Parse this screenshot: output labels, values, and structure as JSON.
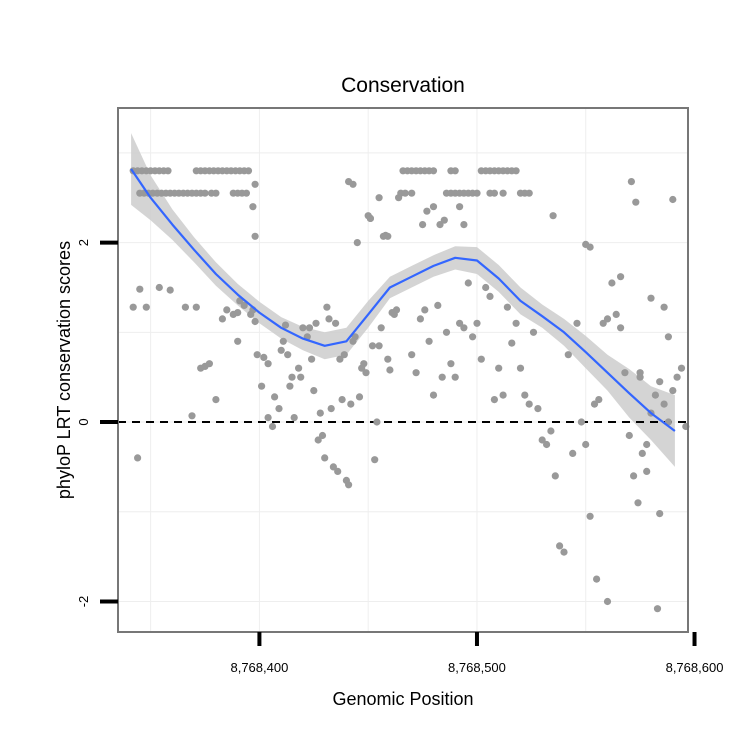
{
  "chart_data": {
    "type": "scatter",
    "title": "Conservation",
    "xlabel": "Genomic Position",
    "ylabel": "phyloP LRT conservation scores",
    "xlim": [
      8768335,
      8768597
    ],
    "ylim": [
      -2.34,
      3.5
    ],
    "xticks": [
      8768400,
      8768500,
      8768600
    ],
    "xtick_labels": [
      "8,768,400",
      "8,768,500",
      "8,768,600"
    ],
    "yticks": [
      -2,
      0,
      2
    ],
    "ytick_labels": [
      "-2",
      "0",
      "2"
    ],
    "grid": true,
    "reference_line": {
      "y": 0,
      "style": "dashed"
    },
    "colors": {
      "points": "#999999",
      "smooth": "#3366ff",
      "band": "#cccccc",
      "frame": "#777777",
      "grid": "#eeeeee"
    },
    "points": [
      [
        8768342,
        2.8
      ],
      [
        8768344,
        2.8
      ],
      [
        8768346,
        2.8
      ],
      [
        8768348,
        2.8
      ],
      [
        8768350,
        2.8
      ],
      [
        8768352,
        2.8
      ],
      [
        8768354,
        2.8
      ],
      [
        8768356,
        2.8
      ],
      [
        8768358,
        2.8
      ],
      [
        8768345,
        2.55
      ],
      [
        8768347,
        2.55
      ],
      [
        8768349,
        2.55
      ],
      [
        8768351,
        2.55
      ],
      [
        8768353,
        2.55
      ],
      [
        8768355,
        2.55
      ],
      [
        8768357,
        2.55
      ],
      [
        8768359,
        2.55
      ],
      [
        8768361,
        2.55
      ],
      [
        8768363,
        2.55
      ],
      [
        8768365,
        2.55
      ],
      [
        8768367,
        2.55
      ],
      [
        8768369,
        2.55
      ],
      [
        8768371,
        2.55
      ],
      [
        8768373,
        2.55
      ],
      [
        8768375,
        2.55
      ],
      [
        8768371,
        2.8
      ],
      [
        8768373,
        2.8
      ],
      [
        8768375,
        2.8
      ],
      [
        8768377,
        2.8
      ],
      [
        8768379,
        2.8
      ],
      [
        8768381,
        2.8
      ],
      [
        8768383,
        2.8
      ],
      [
        8768385,
        2.8
      ],
      [
        8768387,
        2.8
      ],
      [
        8768389,
        2.8
      ],
      [
        8768391,
        2.8
      ],
      [
        8768393,
        2.8
      ],
      [
        8768395,
        2.8
      ],
      [
        8768378,
        2.55
      ],
      [
        8768380,
        2.55
      ],
      [
        8768388,
        2.55
      ],
      [
        8768390,
        2.55
      ],
      [
        8768392,
        2.55
      ],
      [
        8768394,
        2.55
      ],
      [
        8768398,
        2.65
      ],
      [
        8768397,
        2.4
      ],
      [
        8768398,
        2.07
      ],
      [
        8768342,
        1.28
      ],
      [
        8768345,
        1.48
      ],
      [
        8768348,
        1.28
      ],
      [
        8768354,
        1.5
      ],
      [
        8768359,
        1.47
      ],
      [
        8768366,
        1.28
      ],
      [
        8768371,
        1.28
      ],
      [
        8768344,
        -0.4
      ],
      [
        8768373,
        0.6
      ],
      [
        8768375,
        0.62
      ],
      [
        8768377,
        0.65
      ],
      [
        8768380,
        0.25
      ],
      [
        8768383,
        1.15
      ],
      [
        8768385,
        1.25
      ],
      [
        8768388,
        1.2
      ],
      [
        8768390,
        1.22
      ],
      [
        8768391,
        1.35
      ],
      [
        8768393,
        1.3
      ],
      [
        8768396,
        1.2
      ],
      [
        8768398,
        1.12
      ],
      [
        8768399,
        0.75
      ],
      [
        8768401,
        0.4
      ],
      [
        8768402,
        0.72
      ],
      [
        8768404,
        0.65
      ],
      [
        8768369,
        0.07
      ],
      [
        8768390,
        0.9
      ],
      [
        8768397,
        1.25
      ],
      [
        8768404,
        0.05
      ],
      [
        8768406,
        -0.05
      ],
      [
        8768407,
        0.28
      ],
      [
        8768409,
        0.15
      ],
      [
        8768410,
        0.8
      ],
      [
        8768411,
        0.9
      ],
      [
        8768412,
        1.08
      ],
      [
        8768413,
        0.75
      ],
      [
        8768414,
        0.4
      ],
      [
        8768415,
        0.5
      ],
      [
        8768416,
        0.05
      ],
      [
        8768418,
        0.6
      ],
      [
        8768419,
        0.5
      ],
      [
        8768420,
        1.05
      ],
      [
        8768422,
        0.95
      ],
      [
        8768423,
        1.05
      ],
      [
        8768424,
        0.7
      ],
      [
        8768425,
        0.35
      ],
      [
        8768426,
        1.1
      ],
      [
        8768427,
        -0.2
      ],
      [
        8768428,
        0.1
      ],
      [
        8768429,
        -0.15
      ],
      [
        8768430,
        -0.4
      ],
      [
        8768431,
        1.28
      ],
      [
        8768432,
        1.15
      ],
      [
        8768433,
        0.15
      ],
      [
        8768434,
        -0.5
      ],
      [
        8768435,
        1.1
      ],
      [
        8768436,
        -0.55
      ],
      [
        8768437,
        0.7
      ],
      [
        8768438,
        0.25
      ],
      [
        8768439,
        0.75
      ],
      [
        8768440,
        -0.65
      ],
      [
        8768441,
        -0.7
      ],
      [
        8768442,
        0.2
      ],
      [
        8768443,
        0.9
      ],
      [
        8768444,
        0.95
      ],
      [
        8768445,
        2.0
      ],
      [
        8768446,
        0.28
      ],
      [
        8768447,
        0.6
      ],
      [
        8768448,
        0.65
      ],
      [
        8768449,
        0.55
      ],
      [
        8768450,
        2.3
      ],
      [
        8768451,
        2.27
      ],
      [
        8768452,
        0.85
      ],
      [
        8768453,
        -0.42
      ],
      [
        8768454,
        0.0
      ],
      [
        8768455,
        0.85
      ],
      [
        8768456,
        1.05
      ],
      [
        8768457,
        2.07
      ],
      [
        8768458,
        2.08
      ],
      [
        8768459,
        0.7
      ],
      [
        8768460,
        0.58
      ],
      [
        8768461,
        1.22
      ],
      [
        8768462,
        1.2
      ],
      [
        8768463,
        1.25
      ],
      [
        8768464,
        2.5
      ],
      [
        8768465,
        2.55
      ],
      [
        8768467,
        2.55
      ],
      [
        8768470,
        0.75
      ],
      [
        8768472,
        0.55
      ],
      [
        8768474,
        1.15
      ],
      [
        8768476,
        1.25
      ],
      [
        8768478,
        0.9
      ],
      [
        8768480,
        0.3
      ],
      [
        8768482,
        1.3
      ],
      [
        8768484,
        0.5
      ],
      [
        8768486,
        1.0
      ],
      [
        8768488,
        0.65
      ],
      [
        8768490,
        0.5
      ],
      [
        8768492,
        1.1
      ],
      [
        8768494,
        1.05
      ],
      [
        8768496,
        1.55
      ],
      [
        8768498,
        0.95
      ],
      [
        8768500,
        1.1
      ],
      [
        8768502,
        0.7
      ],
      [
        8768504,
        1.5
      ],
      [
        8768506,
        1.4
      ],
      [
        8768508,
        0.25
      ],
      [
        8768510,
        0.6
      ],
      [
        8768512,
        0.3
      ],
      [
        8768514,
        1.28
      ],
      [
        8768516,
        0.88
      ],
      [
        8768518,
        1.1
      ],
      [
        8768520,
        0.6
      ],
      [
        8768522,
        0.3
      ],
      [
        8768524,
        0.2
      ],
      [
        8768526,
        1.0
      ],
      [
        8768528,
        0.15
      ],
      [
        8768530,
        -0.2
      ],
      [
        8768532,
        -0.25
      ],
      [
        8768534,
        -0.1
      ],
      [
        8768536,
        -0.6
      ],
      [
        8768538,
        -1.38
      ],
      [
        8768540,
        -1.45
      ],
      [
        8768542,
        0.75
      ],
      [
        8768544,
        -0.35
      ],
      [
        8768546,
        1.1
      ],
      [
        8768548,
        0.0
      ],
      [
        8768550,
        -0.25
      ],
      [
        8768552,
        -1.05
      ],
      [
        8768554,
        0.2
      ],
      [
        8768556,
        0.25
      ],
      [
        8768558,
        1.1
      ],
      [
        8768560,
        1.15
      ],
      [
        8768562,
        1.55
      ],
      [
        8768564,
        1.2
      ],
      [
        8768566,
        1.05
      ],
      [
        8768568,
        0.55
      ],
      [
        8768570,
        -0.15
      ],
      [
        8768572,
        -0.6
      ],
      [
        8768574,
        -0.9
      ],
      [
        8768576,
        -0.35
      ],
      [
        8768578,
        -0.25
      ],
      [
        8768580,
        0.1
      ],
      [
        8768582,
        0.3
      ],
      [
        8768584,
        0.45
      ],
      [
        8768586,
        0.2
      ],
      [
        8768588,
        0.0
      ],
      [
        8768590,
        0.35
      ],
      [
        8768592,
        0.5
      ],
      [
        8768594,
        0.6
      ],
      [
        8768596,
        -0.05
      ],
      [
        8768555,
        -1.75
      ],
      [
        8768560,
        -2.0
      ],
      [
        8768583,
        -2.08
      ],
      [
        8768584,
        -1.02
      ],
      [
        8768578,
        -0.55
      ],
      [
        8768575,
        0.55
      ],
      [
        8768575,
        0.5
      ],
      [
        8768571,
        2.68
      ],
      [
        8768573,
        2.45
      ],
      [
        8768590,
        2.48
      ],
      [
        8768535,
        2.3
      ],
      [
        8768550,
        1.98
      ],
      [
        8768552,
        1.95
      ],
      [
        8768566,
        1.62
      ],
      [
        8768580,
        1.38
      ],
      [
        8768586,
        1.28
      ],
      [
        8768588,
        0.95
      ],
      [
        8768466,
        2.8
      ],
      [
        8768468,
        2.8
      ],
      [
        8768470,
        2.8
      ],
      [
        8768472,
        2.8
      ],
      [
        8768474,
        2.8
      ],
      [
        8768476,
        2.8
      ],
      [
        8768478,
        2.8
      ],
      [
        8768480,
        2.8
      ],
      [
        8768486,
        2.55
      ],
      [
        8768488,
        2.55
      ],
      [
        8768490,
        2.55
      ],
      [
        8768492,
        2.55
      ],
      [
        8768494,
        2.55
      ],
      [
        8768496,
        2.55
      ],
      [
        8768498,
        2.55
      ],
      [
        8768500,
        2.55
      ],
      [
        8768488,
        2.8
      ],
      [
        8768490,
        2.8
      ],
      [
        8768502,
        2.8
      ],
      [
        8768504,
        2.8
      ],
      [
        8768506,
        2.8
      ],
      [
        8768508,
        2.8
      ],
      [
        8768510,
        2.8
      ],
      [
        8768512,
        2.8
      ],
      [
        8768514,
        2.8
      ],
      [
        8768516,
        2.8
      ],
      [
        8768518,
        2.8
      ],
      [
        8768506,
        2.55
      ],
      [
        8768508,
        2.55
      ],
      [
        8768520,
        2.55
      ],
      [
        8768522,
        2.55
      ],
      [
        8768524,
        2.55
      ],
      [
        8768512,
        2.55
      ],
      [
        8768470,
        2.55
      ],
      [
        8768475,
        2.2
      ],
      [
        8768477,
        2.35
      ],
      [
        8768480,
        2.4
      ],
      [
        8768483,
        2.2
      ],
      [
        8768485,
        2.25
      ],
      [
        8768492,
        2.4
      ],
      [
        8768494,
        2.2
      ],
      [
        8768441,
        2.68
      ],
      [
        8768443,
        2.65
      ],
      [
        8768451,
        2.27
      ],
      [
        8768455,
        2.5
      ],
      [
        8768459,
        2.07
      ]
    ],
    "smooth": {
      "x": [
        8768341,
        8768350,
        8768360,
        8768370,
        8768380,
        8768390,
        8768400,
        8768410,
        8768420,
        8768430,
        8768440,
        8768450,
        8768460,
        8768470,
        8768480,
        8768490,
        8768500,
        8768510,
        8768520,
        8768530,
        8768540,
        8768550,
        8768560,
        8768570,
        8768580,
        8768591
      ],
      "y": [
        2.82,
        2.5,
        2.2,
        1.92,
        1.65,
        1.42,
        1.22,
        1.05,
        0.93,
        0.85,
        0.9,
        1.2,
        1.5,
        1.62,
        1.74,
        1.83,
        1.8,
        1.6,
        1.35,
        1.18,
        1.0,
        0.78,
        0.55,
        0.32,
        0.1,
        -0.1
      ],
      "lower": [
        2.42,
        2.25,
        2.03,
        1.78,
        1.52,
        1.3,
        1.1,
        0.93,
        0.8,
        0.7,
        0.75,
        1.05,
        1.38,
        1.5,
        1.62,
        1.7,
        1.65,
        1.45,
        1.2,
        1.05,
        0.85,
        0.6,
        0.35,
        0.05,
        -0.2,
        -0.5
      ],
      "upper": [
        3.22,
        2.75,
        2.37,
        2.06,
        1.78,
        1.54,
        1.34,
        1.17,
        1.06,
        1.0,
        1.05,
        1.35,
        1.62,
        1.74,
        1.86,
        1.96,
        1.95,
        1.75,
        1.5,
        1.31,
        1.15,
        0.96,
        0.75,
        0.59,
        0.4,
        0.3
      ]
    }
  }
}
